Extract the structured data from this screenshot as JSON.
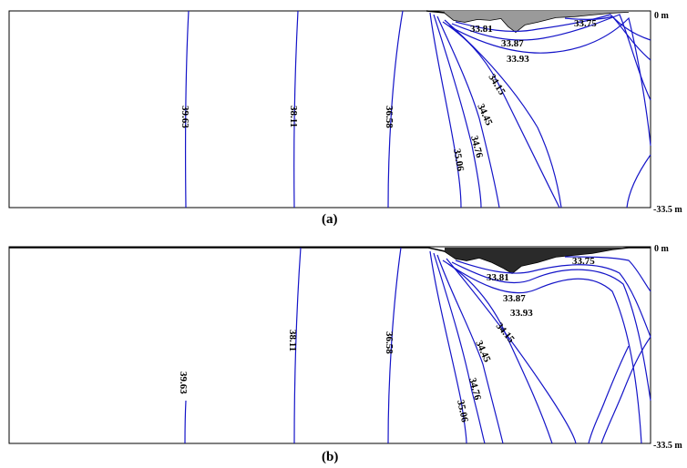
{
  "panels": [
    {
      "id": "a",
      "label": "(a)",
      "depth_top": "0 m",
      "depth_bottom": "-33.5 m",
      "contours": [
        "39.63",
        "38.11",
        "36.58",
        "35.06",
        "34.76",
        "34.45",
        "34.15",
        "33.93",
        "33.87",
        "33.81",
        "33.75"
      ]
    },
    {
      "id": "b",
      "label": "(b)",
      "depth_top": "0 m",
      "depth_bottom": "-33.5 m",
      "contours": [
        "39.63",
        "38.11",
        "36.58",
        "35.06",
        "34.76",
        "34.45",
        "34.15",
        "33.93",
        "33.87",
        "33.81",
        "33.75"
      ]
    }
  ],
  "colors": {
    "isoline": "#1414c8",
    "frame": "#000000"
  }
}
